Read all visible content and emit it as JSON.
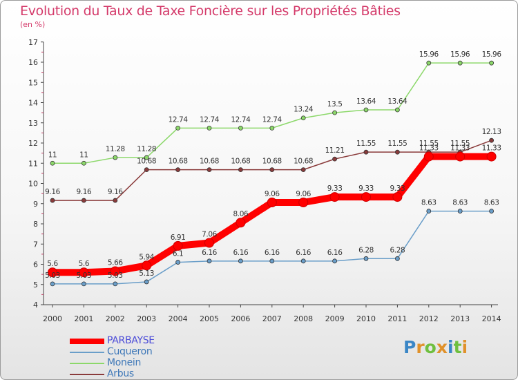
{
  "header": {
    "title": "Evolution du Taux de Taxe Foncière sur les Propriétés Bâties",
    "unit": "(en %)"
  },
  "chart_data": {
    "type": "line",
    "title": "Evolution du Taux de Taxe Foncière sur les Propriétés Bâties",
    "ylabel": "(en %)",
    "xlabel": "",
    "ylim": [
      4,
      17
    ],
    "yticks": [
      "4",
      "5",
      "6",
      "7",
      "8",
      "9",
      "10",
      "11",
      "12",
      "13",
      "14",
      "15",
      "16",
      "17"
    ],
    "categories": [
      "2000",
      "2001",
      "2002",
      "2003",
      "2004",
      "2005",
      "2006",
      "2007",
      "2008",
      "2009",
      "2010",
      "2011",
      "2012",
      "2013",
      "2014"
    ],
    "series": [
      {
        "name": "PARBAYSE",
        "color": "#ff0000",
        "values": [
          5.6,
          5.6,
          5.66,
          5.94,
          6.91,
          7.06,
          8.06,
          9.06,
          9.06,
          9.33,
          9.33,
          9.33,
          11.33,
          11.33,
          11.33
        ],
        "labels": [
          "5.6",
          "5.6",
          "5.66",
          "5.94",
          "6.91",
          "7.06",
          "8.06",
          "9.06",
          "9.06",
          "9.33",
          "9.33",
          "9.33",
          "11.33",
          "11.33",
          "11.33"
        ]
      },
      {
        "name": "Cuqueron",
        "color": "#6a9ec9",
        "values": [
          5.03,
          5.03,
          5.03,
          5.13,
          6.1,
          6.16,
          6.16,
          6.16,
          6.16,
          6.16,
          6.28,
          6.28,
          8.63,
          8.63,
          8.63
        ],
        "labels": [
          "5.03",
          "5.03",
          "5.03",
          "5.13",
          "6.1",
          "6.16",
          "6.16",
          "6.16",
          "6.16",
          "6.16",
          "6.28",
          "6.28",
          "8.63",
          "8.63",
          "8.63"
        ]
      },
      {
        "name": "Monein",
        "color": "#8cd86a",
        "values": [
          11,
          11,
          11.28,
          11.28,
          12.74,
          12.74,
          12.74,
          12.74,
          13.24,
          13.5,
          13.64,
          13.64,
          15.96,
          15.96,
          15.96
        ],
        "labels": [
          "11",
          "11",
          "11.28",
          "11.28",
          "12.74",
          "12.74",
          "12.74",
          "12.74",
          "13.24",
          "13.5",
          "13.64",
          "13.64",
          "15.96",
          "15.96",
          "15.96"
        ]
      },
      {
        "name": "Arbus",
        "color": "#8a3b3b",
        "values": [
          9.16,
          9.16,
          9.16,
          10.68,
          10.68,
          10.68,
          10.68,
          10.68,
          10.68,
          11.21,
          11.55,
          11.55,
          11.55,
          11.55,
          12.13
        ],
        "labels": [
          "9.16",
          "9.16",
          "9.16",
          "10.68",
          "10.68",
          "10.68",
          "10.68",
          "10.68",
          "10.68",
          "11.21",
          "11.55",
          "11.55",
          "11.55",
          "11.55",
          "12.13"
        ]
      }
    ],
    "legend": "bottom-left"
  },
  "legend": {
    "items": [
      {
        "label": "PARBAYSE",
        "color": "#ff0000",
        "text_color": "#4a4ad8"
      },
      {
        "label": "Cuqueron",
        "color": "#6a9ec9",
        "text_color": "#3f78b8"
      },
      {
        "label": "Monein",
        "color": "#8cd86a",
        "text_color": "#3f78b8"
      },
      {
        "label": "Arbus",
        "color": "#8a3b3b",
        "text_color": "#3f78b8"
      }
    ]
  },
  "logo": {
    "letters": [
      "P",
      "r",
      "o",
      "x",
      "i",
      "t",
      "i"
    ],
    "colors": [
      "#3a86c6",
      "#e0912a",
      "#6fbf3f",
      "#e0912a",
      "#3a86c6",
      "#6fbf3f",
      "#e0912a"
    ]
  }
}
